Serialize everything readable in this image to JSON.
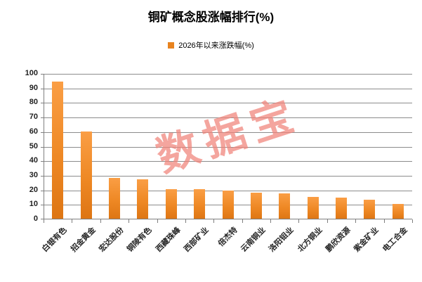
{
  "title": "铜矿概念股涨幅排行(%)",
  "legend": {
    "label": "2026年以来涨跌幅(%)",
    "swatch_color": "#E8831F"
  },
  "watermark": {
    "text": "数据宝",
    "color": "#F0837A"
  },
  "colors": {
    "bar_gradient_top": "#FA9E45",
    "bar_gradient_mid": "#EE8824",
    "bar_gradient_bottom": "#DD7513",
    "gridline": "#8C8C8C",
    "axis": "#7F7F7F",
    "y_label": "#1F1F1F",
    "x_label": "#262626",
    "background": "#FFFFFF"
  },
  "chart_data": {
    "type": "bar",
    "title": "铜矿概念股涨幅排行(%)",
    "legend_entries": [
      "2026年以来涨跌幅(%)"
    ],
    "legend_position": "top",
    "grid": "horizontal",
    "categories": [
      "白银有色",
      "招金黄金",
      "宏达股份",
      "铜陵有色",
      "西藏珠峰",
      "西部矿业",
      "倍杰特",
      "云南铜业",
      "洛阳钼业",
      "北方铜业",
      "鹏欣资源",
      "紫金矿业",
      "电工合金"
    ],
    "values": [
      94.5,
      60.5,
      28.5,
      27.5,
      21,
      21,
      20,
      18.5,
      18,
      15.5,
      15,
      13.5,
      10.5
    ],
    "xlabel": "",
    "ylabel": "",
    "ylim": [
      0,
      100
    ],
    "ytick_step": 10
  }
}
